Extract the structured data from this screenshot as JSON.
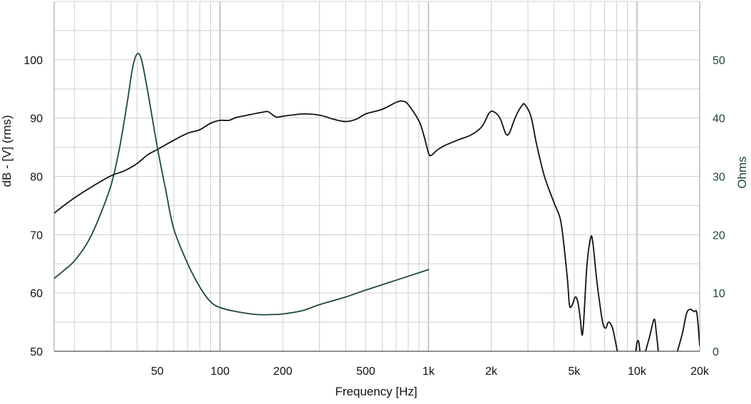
{
  "chart_data": {
    "type": "line",
    "xlabel": "Frequency [Hz]",
    "ylabel": "dB - [V]  (rms)",
    "y2label": "Ohms",
    "x_scale": "log",
    "xlim": [
      16,
      20000
    ],
    "ylim": [
      50,
      110
    ],
    "y2lim": [
      0,
      60
    ],
    "grid": true,
    "x_ticks": [
      {
        "value": 50,
        "label": "50"
      },
      {
        "value": 100,
        "label": "100"
      },
      {
        "value": 200,
        "label": "200"
      },
      {
        "value": 500,
        "label": "500"
      },
      {
        "value": 1000,
        "label": "1k"
      },
      {
        "value": 2000,
        "label": "2k"
      },
      {
        "value": 5000,
        "label": "5k"
      },
      {
        "value": 10000,
        "label": "10k"
      },
      {
        "value": 20000,
        "label": "20k"
      }
    ],
    "y_ticks": [
      {
        "value": 50,
        "label": "50"
      },
      {
        "value": 60,
        "label": "60"
      },
      {
        "value": 70,
        "label": "70"
      },
      {
        "value": 80,
        "label": "80"
      },
      {
        "value": 90,
        "label": "90"
      },
      {
        "value": 100,
        "label": "100"
      }
    ],
    "y2_ticks": [
      {
        "value": 0,
        "label": "0"
      },
      {
        "value": 10,
        "label": "10"
      },
      {
        "value": 20,
        "label": "20"
      },
      {
        "value": 30,
        "label": "30"
      },
      {
        "value": 40,
        "label": "40"
      },
      {
        "value": 50,
        "label": "50"
      }
    ],
    "colors": {
      "spl": "#111111",
      "impedance": "#1e4a2e",
      "grid": "#cfcfcf",
      "axis_right_text": "#1e4a2e"
    },
    "series": [
      {
        "axis": "left",
        "color": "#111111",
        "points": [
          [
            16,
            73.7
          ],
          [
            20,
            76.3
          ],
          [
            25,
            78.5
          ],
          [
            30,
            80.1
          ],
          [
            35,
            81.0
          ],
          [
            40,
            82.2
          ],
          [
            45,
            83.7
          ],
          [
            50,
            84.6
          ],
          [
            60,
            86.2
          ],
          [
            70,
            87.4
          ],
          [
            80,
            88.0
          ],
          [
            90,
            89.1
          ],
          [
            100,
            89.6
          ],
          [
            110,
            89.6
          ],
          [
            120,
            90.1
          ],
          [
            140,
            90.6
          ],
          [
            160,
            91.0
          ],
          [
            170,
            91.1
          ],
          [
            185,
            90.2
          ],
          [
            200,
            90.3
          ],
          [
            250,
            90.7
          ],
          [
            300,
            90.5
          ],
          [
            350,
            89.8
          ],
          [
            400,
            89.4
          ],
          [
            450,
            89.8
          ],
          [
            500,
            90.7
          ],
          [
            600,
            91.5
          ],
          [
            700,
            92.7
          ],
          [
            750,
            92.9
          ],
          [
            800,
            92.3
          ],
          [
            900,
            89.5
          ],
          [
            950,
            87.0
          ],
          [
            1000,
            84.0
          ],
          [
            1030,
            83.6
          ],
          [
            1100,
            84.5
          ],
          [
            1200,
            85.3
          ],
          [
            1400,
            86.3
          ],
          [
            1600,
            87.1
          ],
          [
            1800,
            88.5
          ],
          [
            1950,
            90.8
          ],
          [
            2050,
            91.1
          ],
          [
            2200,
            90.0
          ],
          [
            2350,
            87.3
          ],
          [
            2450,
            87.5
          ],
          [
            2600,
            90.0
          ],
          [
            2800,
            92.1
          ],
          [
            2900,
            92.3
          ],
          [
            3100,
            90.3
          ],
          [
            3300,
            85.5
          ],
          [
            3600,
            80.0
          ],
          [
            4000,
            75.5
          ],
          [
            4300,
            72.5
          ],
          [
            4500,
            67.0
          ],
          [
            4650,
            62.0
          ],
          [
            4750,
            57.8
          ],
          [
            4900,
            58.0
          ],
          [
            5050,
            59.3
          ],
          [
            5200,
            58.5
          ],
          [
            5350,
            55.5
          ],
          [
            5450,
            52.8
          ],
          [
            5550,
            55.0
          ],
          [
            5750,
            64.5
          ],
          [
            6000,
            69.5
          ],
          [
            6150,
            68.5
          ],
          [
            6400,
            62.5
          ],
          [
            6700,
            57.0
          ],
          [
            6900,
            54.5
          ],
          [
            7100,
            54.0
          ],
          [
            7300,
            55.0
          ],
          [
            7600,
            54.2
          ],
          [
            7800,
            52.5
          ],
          [
            8100,
            49.5
          ]
        ]
      },
      {
        "axis": "left",
        "color": "#111111",
        "points": [
          [
            9800,
            49.0
          ],
          [
            10000,
            51.4
          ],
          [
            10200,
            51.6
          ],
          [
            10400,
            49.0
          ]
        ]
      },
      {
        "axis": "left",
        "color": "#111111",
        "points": [
          [
            10900,
            49.5
          ],
          [
            11500,
            52.5
          ],
          [
            12100,
            55.5
          ],
          [
            12400,
            53.0
          ],
          [
            12700,
            49.5
          ]
        ]
      },
      {
        "axis": "left",
        "color": "#111111",
        "points": [
          [
            15500,
            49.5
          ],
          [
            16500,
            53.0
          ],
          [
            17300,
            56.5
          ],
          [
            18000,
            57.2
          ],
          [
            18800,
            56.8
          ],
          [
            19400,
            56.5
          ],
          [
            20000,
            51.0
          ]
        ]
      },
      {
        "axis": "right",
        "color": "#1e4a2e",
        "points": [
          [
            16,
            12.5
          ],
          [
            18,
            14.0
          ],
          [
            20,
            15.5
          ],
          [
            23,
            18.5
          ],
          [
            26,
            22.5
          ],
          [
            30,
            28.5
          ],
          [
            33,
            35.0
          ],
          [
            36,
            43.0
          ],
          [
            38,
            48.5
          ],
          [
            40,
            51.0
          ],
          [
            42,
            50.0
          ],
          [
            45,
            44.5
          ],
          [
            50,
            35.0
          ],
          [
            55,
            27.5
          ],
          [
            60,
            21.0
          ],
          [
            70,
            15.0
          ],
          [
            80,
            11.0
          ],
          [
            90,
            8.5
          ],
          [
            100,
            7.5
          ],
          [
            120,
            6.8
          ],
          [
            150,
            6.3
          ],
          [
            180,
            6.3
          ],
          [
            200,
            6.4
          ],
          [
            250,
            7.0
          ],
          [
            300,
            8.0
          ],
          [
            400,
            9.3
          ],
          [
            500,
            10.5
          ],
          [
            700,
            12.2
          ],
          [
            1000,
            14.0
          ]
        ]
      }
    ]
  }
}
